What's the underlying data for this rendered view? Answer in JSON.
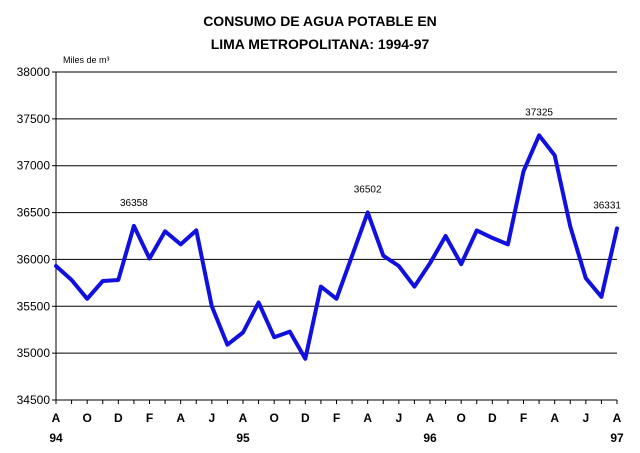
{
  "chart_data": {
    "type": "line",
    "title_lines": [
      "CONSUMO DE AGUA POTABLE EN",
      "LIMA METROPOLITANA: 1994-97"
    ],
    "ylabel": "Miles de m³",
    "ylim": [
      34500,
      38000
    ],
    "yticks": [
      34500,
      35000,
      35500,
      36000,
      36500,
      37000,
      37500,
      38000
    ],
    "xtick_labels": [
      "A",
      "O",
      "D",
      "F",
      "A",
      "J",
      "A",
      "O",
      "D",
      "F",
      "A",
      "J",
      "A",
      "O",
      "D",
      "F",
      "A",
      "J",
      "A"
    ],
    "year_labels": [
      {
        "index": 0,
        "label": "94"
      },
      {
        "index": 12,
        "label": "95"
      },
      {
        "index": 24,
        "label": "96"
      },
      {
        "index": 36,
        "label": "97"
      }
    ],
    "series": [
      {
        "name": "Consumo de agua potable",
        "color": "#1010e0",
        "values": [
          35930,
          35780,
          35580,
          35770,
          35780,
          36358,
          36010,
          36300,
          36160,
          36310,
          35500,
          35090,
          35220,
          35540,
          35170,
          35230,
          34940,
          35710,
          35580,
          36040,
          36502,
          36040,
          35930,
          35710,
          35960,
          36250,
          35950,
          36310,
          36230,
          36160,
          36940,
          37325,
          37110,
          36350,
          35800,
          35600,
          36331
        ]
      }
    ],
    "annotations": [
      {
        "index": 5,
        "text": "36358"
      },
      {
        "index": 20,
        "text": "36502"
      },
      {
        "index": 31,
        "text": "37325"
      },
      {
        "index": 36,
        "text": "36331"
      }
    ]
  }
}
